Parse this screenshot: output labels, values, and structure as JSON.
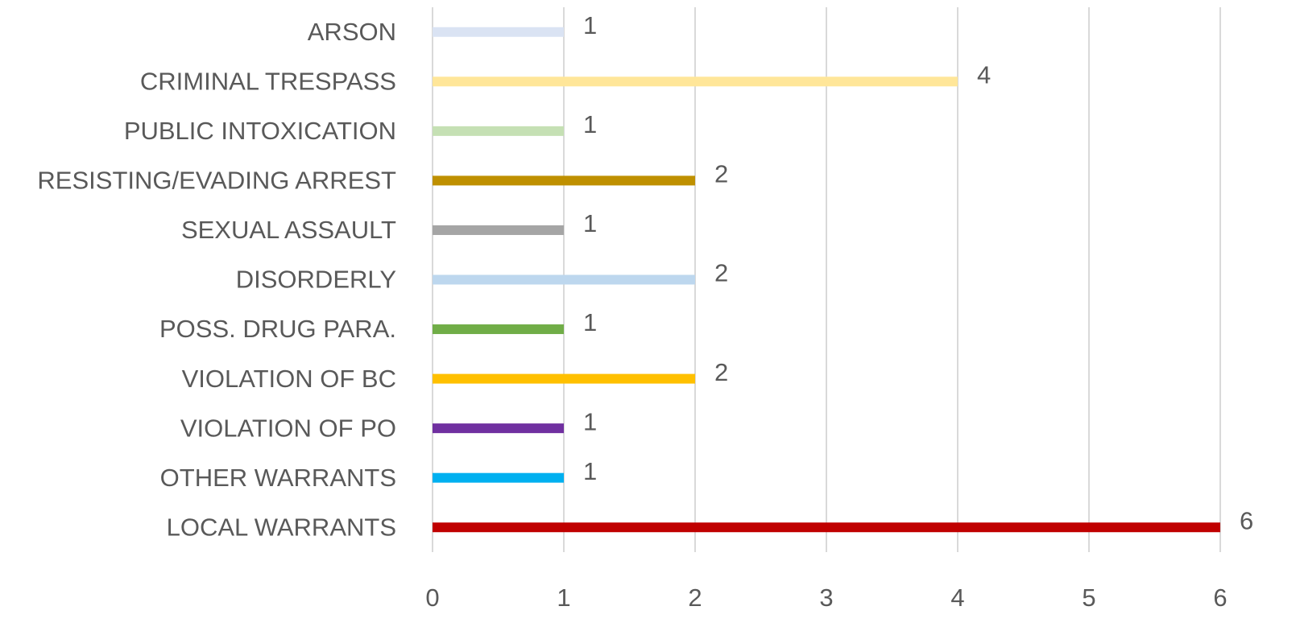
{
  "chart_data": {
    "type": "hbar",
    "categories": [
      "ARSON",
      "CRIMINAL TRESPASS",
      "PUBLIC INTOXICATION",
      "RESISTING/EVADING ARREST",
      "SEXUAL ASSAULT",
      "DISORDERLY",
      "POSS. DRUG PARA.",
      "VIOLATION OF BC",
      "VIOLATION OF PO",
      "OTHER WARRANTS",
      "LOCAL WARRANTS"
    ],
    "values": [
      1,
      4,
      1,
      2,
      1,
      2,
      1,
      2,
      1,
      1,
      6
    ],
    "colors": [
      "#dae3f3",
      "#ffe699",
      "#c5e0b4",
      "#bf9000",
      "#a5a5a5",
      "#bdd7ee",
      "#70ad47",
      "#ffc000",
      "#7030a0",
      "#00b0f0",
      "#c00000"
    ],
    "xlim": [
      0,
      6
    ],
    "xticks": [
      0,
      1,
      2,
      3,
      4,
      5,
      6
    ],
    "grid": true
  }
}
